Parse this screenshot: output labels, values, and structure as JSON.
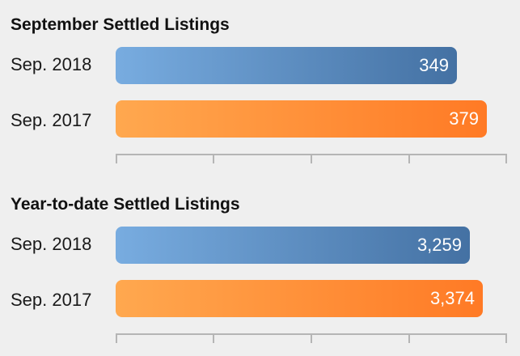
{
  "chart_data": [
    {
      "type": "bar",
      "orientation": "horizontal",
      "title": "September Settled Listings",
      "categories": [
        "Sep. 2018",
        "Sep. 2017"
      ],
      "values": [
        349,
        379
      ],
      "value_labels": [
        "349",
        "379"
      ],
      "colors": [
        "#4a78ab",
        "#ff8533"
      ],
      "xlim": [
        0,
        400
      ],
      "grid": false
    },
    {
      "type": "bar",
      "orientation": "horizontal",
      "title": "Year-to-date Settled Listings",
      "categories": [
        "Sep. 2018",
        "Sep. 2017"
      ],
      "values": [
        3259,
        3374
      ],
      "value_labels": [
        "3,259",
        "3,374"
      ],
      "colors": [
        "#4a78ab",
        "#ff8533"
      ],
      "xlim": [
        0,
        3600
      ],
      "grid": false
    }
  ]
}
